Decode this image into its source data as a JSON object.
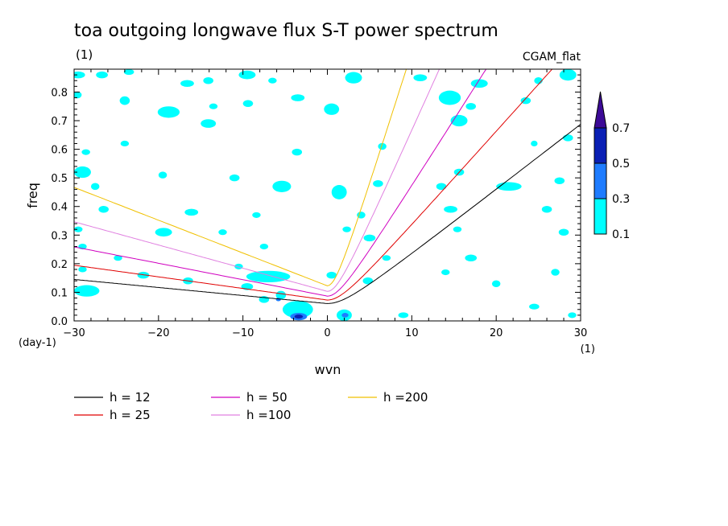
{
  "chart_data": {
    "type": "heatmap",
    "title": "toa outgoing longwave flux S-T power spectrum",
    "subtitle_left": "(1)",
    "subtitle_right": "CGAM_flat",
    "xlabel": "wvn",
    "ylabel": "freq",
    "x_unit": "(1)",
    "y_unit": "(day-1)",
    "xlim": [
      -30,
      30
    ],
    "ylim": [
      0,
      0.88
    ],
    "xticks": [
      -30,
      -20,
      -10,
      0,
      10,
      20,
      30
    ],
    "yticks": [
      0.0,
      0.1,
      0.2,
      0.3,
      0.4,
      0.5,
      0.6,
      0.7,
      0.8
    ],
    "colorbar": {
      "levels": [
        0.1,
        0.3,
        0.5,
        0.7
      ],
      "colors": [
        "#00ffff",
        "#1e7cff",
        "#0a1fb4",
        "#3c0a96"
      ]
    },
    "dispersion_curves": [
      {
        "name": "h = 12",
        "h": 12,
        "color": "#000000"
      },
      {
        "name": "h = 25",
        "h": 25,
        "color": "#e00000"
      },
      {
        "name": "h = 50",
        "h": 50,
        "color": "#d000c0"
      },
      {
        "name": "h =100",
        "h": 100,
        "color": "#e080e0"
      },
      {
        "name": "h =200",
        "h": 200,
        "color": "#f0c000"
      }
    ],
    "contour_blobs": [
      {
        "x": -29.5,
        "y": 0.86,
        "rx": 0.8,
        "ry": 0.012,
        "level": 0.1
      },
      {
        "x": -26.7,
        "y": 0.86,
        "rx": 0.7,
        "ry": 0.012,
        "level": 0.1
      },
      {
        "x": -23.5,
        "y": 0.87,
        "rx": 0.6,
        "ry": 0.01,
        "level": 0.1
      },
      {
        "x": -16.6,
        "y": 0.83,
        "rx": 0.8,
        "ry": 0.012,
        "level": 0.1
      },
      {
        "x": -14.1,
        "y": 0.84,
        "rx": 0.6,
        "ry": 0.012,
        "level": 0.1
      },
      {
        "x": -9.5,
        "y": 0.86,
        "rx": 1.0,
        "ry": 0.015,
        "level": 0.1
      },
      {
        "x": -6.5,
        "y": 0.84,
        "rx": 0.5,
        "ry": 0.01,
        "level": 0.1
      },
      {
        "x": 3.1,
        "y": 0.85,
        "rx": 1.0,
        "ry": 0.02,
        "level": 0.1
      },
      {
        "x": 11.0,
        "y": 0.85,
        "rx": 0.8,
        "ry": 0.012,
        "level": 0.1
      },
      {
        "x": 18.0,
        "y": 0.83,
        "rx": 1.0,
        "ry": 0.015,
        "level": 0.1
      },
      {
        "x": 25.0,
        "y": 0.84,
        "rx": 0.5,
        "ry": 0.012,
        "level": 0.1
      },
      {
        "x": 28.5,
        "y": 0.86,
        "rx": 1.0,
        "ry": 0.02,
        "level": 0.1
      },
      {
        "x": -29.6,
        "y": 0.79,
        "rx": 0.5,
        "ry": 0.012,
        "level": 0.1
      },
      {
        "x": -24.0,
        "y": 0.77,
        "rx": 0.6,
        "ry": 0.015,
        "level": 0.1
      },
      {
        "x": -18.8,
        "y": 0.73,
        "rx": 1.3,
        "ry": 0.02,
        "level": 0.1
      },
      {
        "x": -13.5,
        "y": 0.75,
        "rx": 0.5,
        "ry": 0.01,
        "level": 0.1
      },
      {
        "x": -9.4,
        "y": 0.76,
        "rx": 0.6,
        "ry": 0.012,
        "level": 0.1
      },
      {
        "x": -3.5,
        "y": 0.78,
        "rx": 0.8,
        "ry": 0.012,
        "level": 0.1
      },
      {
        "x": 0.5,
        "y": 0.74,
        "rx": 0.9,
        "ry": 0.02,
        "level": 0.1
      },
      {
        "x": 14.5,
        "y": 0.78,
        "rx": 1.3,
        "ry": 0.025,
        "level": 0.1
      },
      {
        "x": 17.0,
        "y": 0.75,
        "rx": 0.6,
        "ry": 0.012,
        "level": 0.1
      },
      {
        "x": 23.5,
        "y": 0.77,
        "rx": 0.6,
        "ry": 0.012,
        "level": 0.1
      },
      {
        "x": -14.1,
        "y": 0.69,
        "rx": 0.9,
        "ry": 0.015,
        "level": 0.1
      },
      {
        "x": -24.0,
        "y": 0.62,
        "rx": 0.5,
        "ry": 0.01,
        "level": 0.1
      },
      {
        "x": -28.6,
        "y": 0.59,
        "rx": 0.5,
        "ry": 0.01,
        "level": 0.1
      },
      {
        "x": -3.6,
        "y": 0.59,
        "rx": 0.6,
        "ry": 0.012,
        "level": 0.1
      },
      {
        "x": 6.5,
        "y": 0.61,
        "rx": 0.5,
        "ry": 0.012,
        "level": 0.1
      },
      {
        "x": 15.6,
        "y": 0.7,
        "rx": 1.0,
        "ry": 0.02,
        "level": 0.1
      },
      {
        "x": 24.5,
        "y": 0.62,
        "rx": 0.4,
        "ry": 0.01,
        "level": 0.1
      },
      {
        "x": 28.5,
        "y": 0.64,
        "rx": 0.6,
        "ry": 0.012,
        "level": 0.1
      },
      {
        "x": -29.0,
        "y": 0.52,
        "rx": 1.0,
        "ry": 0.02,
        "level": 0.1
      },
      {
        "x": -27.5,
        "y": 0.47,
        "rx": 0.5,
        "ry": 0.012,
        "level": 0.1
      },
      {
        "x": -19.5,
        "y": 0.51,
        "rx": 0.5,
        "ry": 0.012,
        "level": 0.1
      },
      {
        "x": -11.0,
        "y": 0.5,
        "rx": 0.6,
        "ry": 0.012,
        "level": 0.1
      },
      {
        "x": -5.4,
        "y": 0.47,
        "rx": 1.1,
        "ry": 0.02,
        "level": 0.1
      },
      {
        "x": 1.4,
        "y": 0.45,
        "rx": 0.9,
        "ry": 0.025,
        "level": 0.1
      },
      {
        "x": 6.0,
        "y": 0.48,
        "rx": 0.6,
        "ry": 0.012,
        "level": 0.1
      },
      {
        "x": 13.5,
        "y": 0.47,
        "rx": 0.6,
        "ry": 0.012,
        "level": 0.1
      },
      {
        "x": 15.6,
        "y": 0.52,
        "rx": 0.6,
        "ry": 0.012,
        "level": 0.1
      },
      {
        "x": 21.5,
        "y": 0.47,
        "rx": 1.5,
        "ry": 0.015,
        "level": 0.1
      },
      {
        "x": 27.5,
        "y": 0.49,
        "rx": 0.6,
        "ry": 0.012,
        "level": 0.1
      },
      {
        "x": -26.5,
        "y": 0.39,
        "rx": 0.6,
        "ry": 0.012,
        "level": 0.1
      },
      {
        "x": -16.1,
        "y": 0.38,
        "rx": 0.8,
        "ry": 0.012,
        "level": 0.1
      },
      {
        "x": -8.4,
        "y": 0.37,
        "rx": 0.5,
        "ry": 0.01,
        "level": 0.1
      },
      {
        "x": 4.0,
        "y": 0.37,
        "rx": 0.5,
        "ry": 0.012,
        "level": 0.1
      },
      {
        "x": 14.6,
        "y": 0.39,
        "rx": 0.8,
        "ry": 0.012,
        "level": 0.1
      },
      {
        "x": 26.0,
        "y": 0.39,
        "rx": 0.6,
        "ry": 0.012,
        "level": 0.1
      },
      {
        "x": -29.5,
        "y": 0.32,
        "rx": 0.5,
        "ry": 0.01,
        "level": 0.1
      },
      {
        "x": -19.4,
        "y": 0.31,
        "rx": 1.0,
        "ry": 0.015,
        "level": 0.1
      },
      {
        "x": -12.4,
        "y": 0.31,
        "rx": 0.5,
        "ry": 0.01,
        "level": 0.1
      },
      {
        "x": 2.3,
        "y": 0.32,
        "rx": 0.5,
        "ry": 0.01,
        "level": 0.1
      },
      {
        "x": 5.0,
        "y": 0.29,
        "rx": 0.7,
        "ry": 0.012,
        "level": 0.1
      },
      {
        "x": 15.4,
        "y": 0.32,
        "rx": 0.5,
        "ry": 0.01,
        "level": 0.1
      },
      {
        "x": 28.0,
        "y": 0.31,
        "rx": 0.6,
        "ry": 0.012,
        "level": 0.1
      },
      {
        "x": -29.0,
        "y": 0.26,
        "rx": 0.5,
        "ry": 0.01,
        "level": 0.1
      },
      {
        "x": -24.8,
        "y": 0.22,
        "rx": 0.5,
        "ry": 0.01,
        "level": 0.1
      },
      {
        "x": -7.5,
        "y": 0.26,
        "rx": 0.5,
        "ry": 0.01,
        "level": 0.1
      },
      {
        "x": 7.0,
        "y": 0.22,
        "rx": 0.5,
        "ry": 0.01,
        "level": 0.1
      },
      {
        "x": 17.0,
        "y": 0.22,
        "rx": 0.7,
        "ry": 0.012,
        "level": 0.1
      },
      {
        "x": -29.0,
        "y": 0.18,
        "rx": 0.5,
        "ry": 0.01,
        "level": 0.1
      },
      {
        "x": -21.8,
        "y": 0.16,
        "rx": 0.7,
        "ry": 0.012,
        "level": 0.1
      },
      {
        "x": -10.5,
        "y": 0.19,
        "rx": 0.5,
        "ry": 0.01,
        "level": 0.1
      },
      {
        "x": 0.5,
        "y": 0.16,
        "rx": 0.6,
        "ry": 0.012,
        "level": 0.1
      },
      {
        "x": 4.8,
        "y": 0.14,
        "rx": 0.6,
        "ry": 0.012,
        "level": 0.1
      },
      {
        "x": 14.0,
        "y": 0.17,
        "rx": 0.5,
        "ry": 0.01,
        "level": 0.1
      },
      {
        "x": 20.0,
        "y": 0.13,
        "rx": 0.5,
        "ry": 0.012,
        "level": 0.1
      },
      {
        "x": 27.0,
        "y": 0.17,
        "rx": 0.5,
        "ry": 0.012,
        "level": 0.1
      },
      {
        "x": -7.0,
        "y": 0.155,
        "rx": 2.6,
        "ry": 0.02,
        "level": 0.1
      },
      {
        "x": -9.5,
        "y": 0.12,
        "rx": 0.7,
        "ry": 0.012,
        "level": 0.1
      },
      {
        "x": -16.5,
        "y": 0.14,
        "rx": 0.6,
        "ry": 0.012,
        "level": 0.1
      },
      {
        "x": -28.5,
        "y": 0.105,
        "rx": 1.5,
        "ry": 0.02,
        "level": 0.1
      },
      {
        "x": -7.5,
        "y": 0.075,
        "rx": 0.6,
        "ry": 0.012,
        "level": 0.1
      },
      {
        "x": -5.5,
        "y": 0.09,
        "rx": 0.6,
        "ry": 0.015,
        "level": 0.1
      },
      {
        "x": -3.5,
        "y": 0.04,
        "rx": 1.8,
        "ry": 0.03,
        "level": 0.1
      },
      {
        "x": 2.0,
        "y": 0.02,
        "rx": 0.9,
        "ry": 0.02,
        "level": 0.1
      },
      {
        "x": 9.0,
        "y": 0.02,
        "rx": 0.6,
        "ry": 0.01,
        "level": 0.1
      },
      {
        "x": 24.5,
        "y": 0.05,
        "rx": 0.6,
        "ry": 0.01,
        "level": 0.1
      },
      {
        "x": 29.0,
        "y": 0.02,
        "rx": 0.5,
        "ry": 0.01,
        "level": 0.1
      },
      {
        "x": -3.4,
        "y": 0.015,
        "rx": 1.0,
        "ry": 0.013,
        "level": 0.3
      },
      {
        "x": -3.4,
        "y": 0.015,
        "rx": 0.5,
        "ry": 0.007,
        "level": 0.5
      },
      {
        "x": -5.8,
        "y": 0.075,
        "rx": 0.3,
        "ry": 0.006,
        "level": 0.3
      },
      {
        "x": 2.1,
        "y": 0.02,
        "rx": 0.4,
        "ry": 0.008,
        "level": 0.3
      }
    ]
  }
}
